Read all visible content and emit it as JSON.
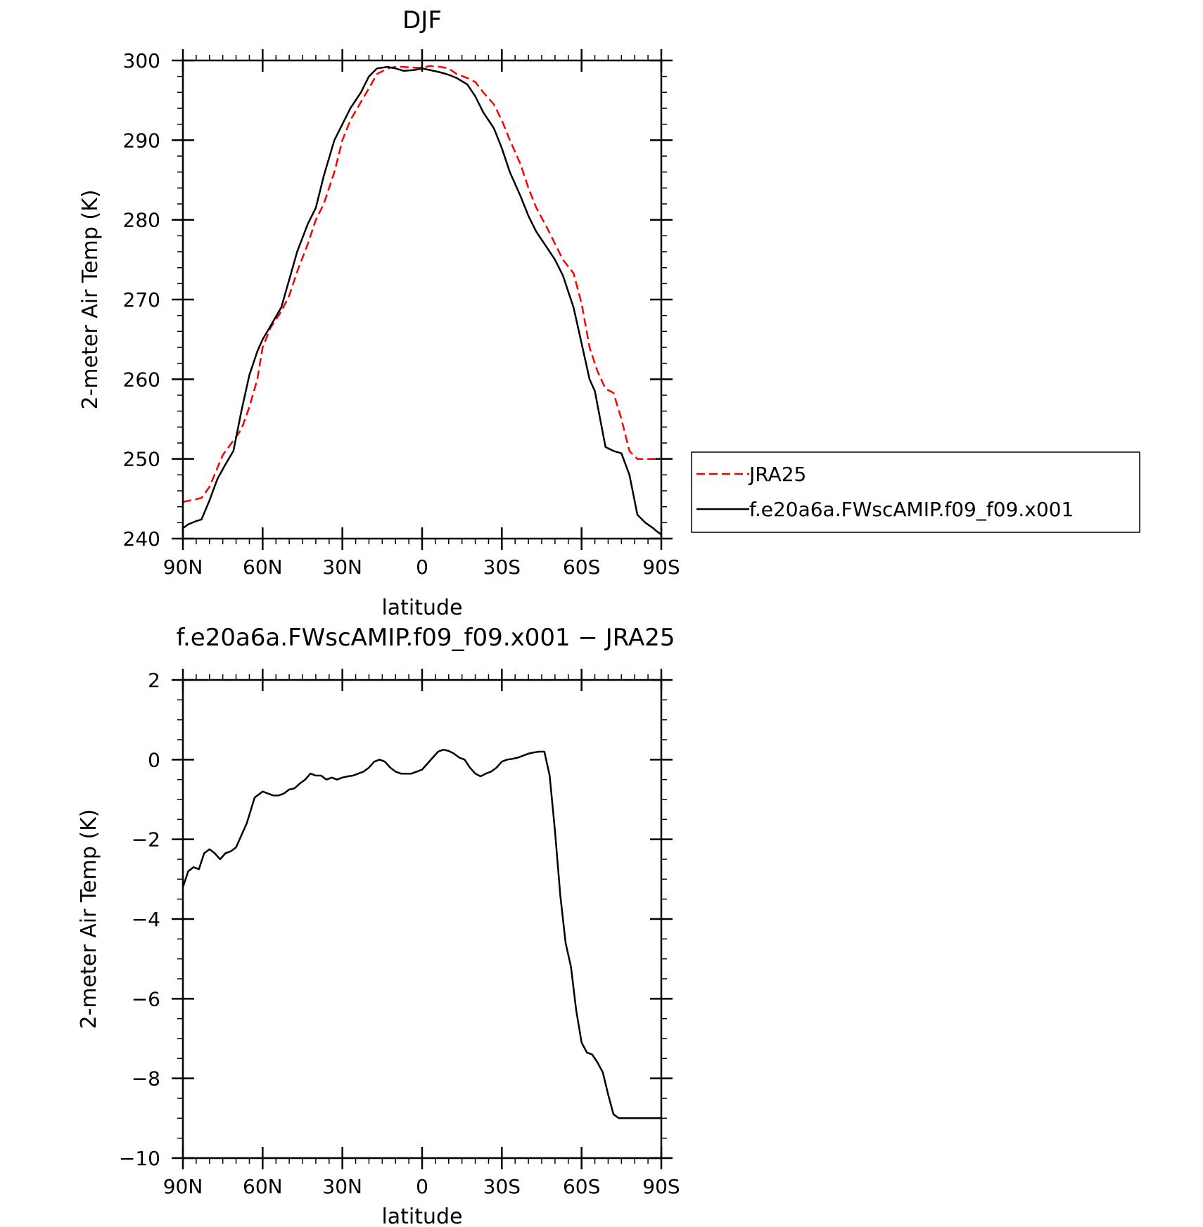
{
  "chart_data": [
    {
      "type": "line",
      "title": "DJF",
      "xlabel": "latitude",
      "ylabel": "2-meter Air Temp (K)",
      "xlim": [
        90,
        -90
      ],
      "ylim": [
        240,
        300
      ],
      "x_tick_values": [
        90,
        60,
        30,
        0,
        -30,
        -60,
        -90
      ],
      "x_tick_labels": [
        "90N",
        "60N",
        "30N",
        "0",
        "30S",
        "60S",
        "90S"
      ],
      "y_ticks": [
        240,
        250,
        260,
        270,
        280,
        290,
        300
      ],
      "legend_placement": "right",
      "series": [
        {
          "name": "JRA25",
          "color": "#ff0000",
          "style": "dashed",
          "x": [
            90,
            83,
            80,
            75,
            68,
            65,
            62,
            60,
            57,
            53,
            50,
            47,
            43,
            40,
            37,
            33,
            30,
            27,
            23,
            20,
            17,
            13,
            10,
            7,
            3,
            0,
            -3,
            -7,
            -10,
            -13,
            -17,
            -20,
            -23,
            -27,
            -30,
            -33,
            -37,
            -40,
            -43,
            -47,
            -50,
            -53,
            -57,
            -60,
            -63,
            -66,
            -69,
            -72,
            -75,
            -78,
            -81,
            -84,
            -87,
            -90
          ],
          "values": [
            244.6,
            245.1,
            246.5,
            250.5,
            253.7,
            256.5,
            260.0,
            264.0,
            266.5,
            268.5,
            270.5,
            273.5,
            277.0,
            280.0,
            282.0,
            286.0,
            290.0,
            292.5,
            294.8,
            296.5,
            298.3,
            299.0,
            299.2,
            299.2,
            299.1,
            299.1,
            299.3,
            299.2,
            299.0,
            298.3,
            297.8,
            297.3,
            296.0,
            294.5,
            292.5,
            290.0,
            287.0,
            284.0,
            281.5,
            279.0,
            277.0,
            275.0,
            273.3,
            269.5,
            264.0,
            261.0,
            258.8,
            258.3,
            255.0,
            251.0,
            250.0,
            250.0,
            250.0,
            250.0
          ]
        },
        {
          "name": "f.e20a6a.FWscAMIP.f09_f09.x001",
          "color": "#000000",
          "style": "solid",
          "x": [
            90,
            88,
            85,
            83,
            80,
            77,
            74,
            71,
            68,
            65,
            62,
            60,
            57,
            53,
            50,
            47,
            43,
            40,
            37,
            33,
            30,
            27,
            23,
            20,
            17,
            13,
            10,
            7,
            3,
            0,
            -3,
            -7,
            -10,
            -13,
            -17,
            -20,
            -23,
            -27,
            -30,
            -33,
            -37,
            -40,
            -43,
            -47,
            -50,
            -53,
            -57,
            -60,
            -63,
            -65,
            -67,
            -69,
            -72,
            -75,
            -78,
            -81,
            -84,
            -87,
            -88,
            -90
          ],
          "values": [
            241.3,
            241.8,
            242.2,
            242.4,
            244.8,
            247.5,
            249.3,
            251.0,
            256.0,
            260.5,
            263.5,
            265.0,
            266.7,
            269.0,
            272.5,
            276.0,
            279.5,
            281.5,
            285.5,
            290.0,
            292.0,
            294.0,
            296.0,
            298.0,
            299.0,
            299.2,
            299.0,
            298.7,
            298.8,
            299.0,
            298.8,
            298.5,
            298.2,
            297.8,
            297.0,
            295.5,
            293.5,
            291.5,
            289.0,
            286.0,
            283.0,
            280.5,
            278.5,
            276.5,
            275.0,
            273.0,
            269.0,
            264.5,
            260.0,
            258.5,
            255.0,
            251.5,
            251.0,
            250.7,
            248.0,
            243.0,
            242.0,
            241.3,
            241.0,
            240.5
          ]
        }
      ]
    },
    {
      "type": "line",
      "title": "f.e20a6a.FWscAMIP.f09_f09.x001 − JRA25",
      "xlabel": "latitude",
      "ylabel": "2-meter Air Temp (K)",
      "xlim": [
        90,
        -90
      ],
      "ylim": [
        -10,
        2
      ],
      "x_tick_values": [
        90,
        60,
        30,
        0,
        -30,
        -60,
        -90
      ],
      "x_tick_labels": [
        "90N",
        "60N",
        "30N",
        "0",
        "30S",
        "60S",
        "90S"
      ],
      "y_ticks": [
        -10,
        -8,
        -6,
        -4,
        -2,
        0,
        2
      ],
      "y_tick_labels": [
        "−10",
        "−8",
        "−6",
        "−4",
        "−2",
        "0",
        "2"
      ],
      "series": [
        {
          "color": "#000000",
          "style": "solid",
          "x": [
            90,
            88,
            86,
            84,
            82,
            80,
            78,
            76,
            74,
            72,
            70,
            68,
            66,
            63,
            60,
            58,
            56,
            54,
            52,
            50,
            48,
            46,
            44,
            42,
            40,
            38,
            36,
            34,
            32,
            30,
            28,
            26,
            24,
            22,
            20,
            18,
            16,
            14,
            12,
            10,
            8,
            6,
            4,
            2,
            0,
            -2,
            -4,
            -6,
            -8,
            -10,
            -12,
            -14,
            -16,
            -18,
            -20,
            -22,
            -24,
            -26,
            -28,
            -30,
            -32,
            -34,
            -36,
            -38,
            -40,
            -42,
            -44,
            -46,
            -48,
            -50,
            -52,
            -54,
            -56,
            -58,
            -60,
            -62,
            -64,
            -66,
            -68,
            -70,
            -72,
            -74,
            -76,
            -78,
            -80,
            -82,
            -84,
            -86,
            -88,
            -90
          ],
          "values": [
            -3.2,
            -2.8,
            -2.7,
            -2.75,
            -2.35,
            -2.25,
            -2.35,
            -2.5,
            -2.35,
            -2.3,
            -2.2,
            -1.9,
            -1.6,
            -0.95,
            -0.8,
            -0.85,
            -0.9,
            -0.9,
            -0.85,
            -0.75,
            -0.72,
            -0.6,
            -0.5,
            -0.35,
            -0.4,
            -0.4,
            -0.5,
            -0.45,
            -0.5,
            -0.45,
            -0.42,
            -0.4,
            -0.35,
            -0.3,
            -0.2,
            -0.05,
            0.0,
            -0.05,
            -0.2,
            -0.3,
            -0.35,
            -0.35,
            -0.35,
            -0.3,
            -0.25,
            -0.1,
            0.05,
            0.2,
            0.25,
            0.22,
            0.15,
            0.05,
            0.0,
            -0.2,
            -0.35,
            -0.42,
            -0.35,
            -0.3,
            -0.2,
            -0.05,
            0.0,
            0.02,
            0.05,
            0.1,
            0.15,
            0.18,
            0.2,
            0.2,
            -0.4,
            -1.8,
            -3.4,
            -4.6,
            -5.2,
            -6.3,
            -7.1,
            -7.35,
            -7.4,
            -7.6,
            -7.85,
            -8.4,
            -8.9,
            -9.0,
            -9.0,
            -9.0,
            -9.0,
            -9.0,
            -9.0,
            -9.0,
            -9.0,
            -9.0
          ]
        }
      ]
    }
  ]
}
